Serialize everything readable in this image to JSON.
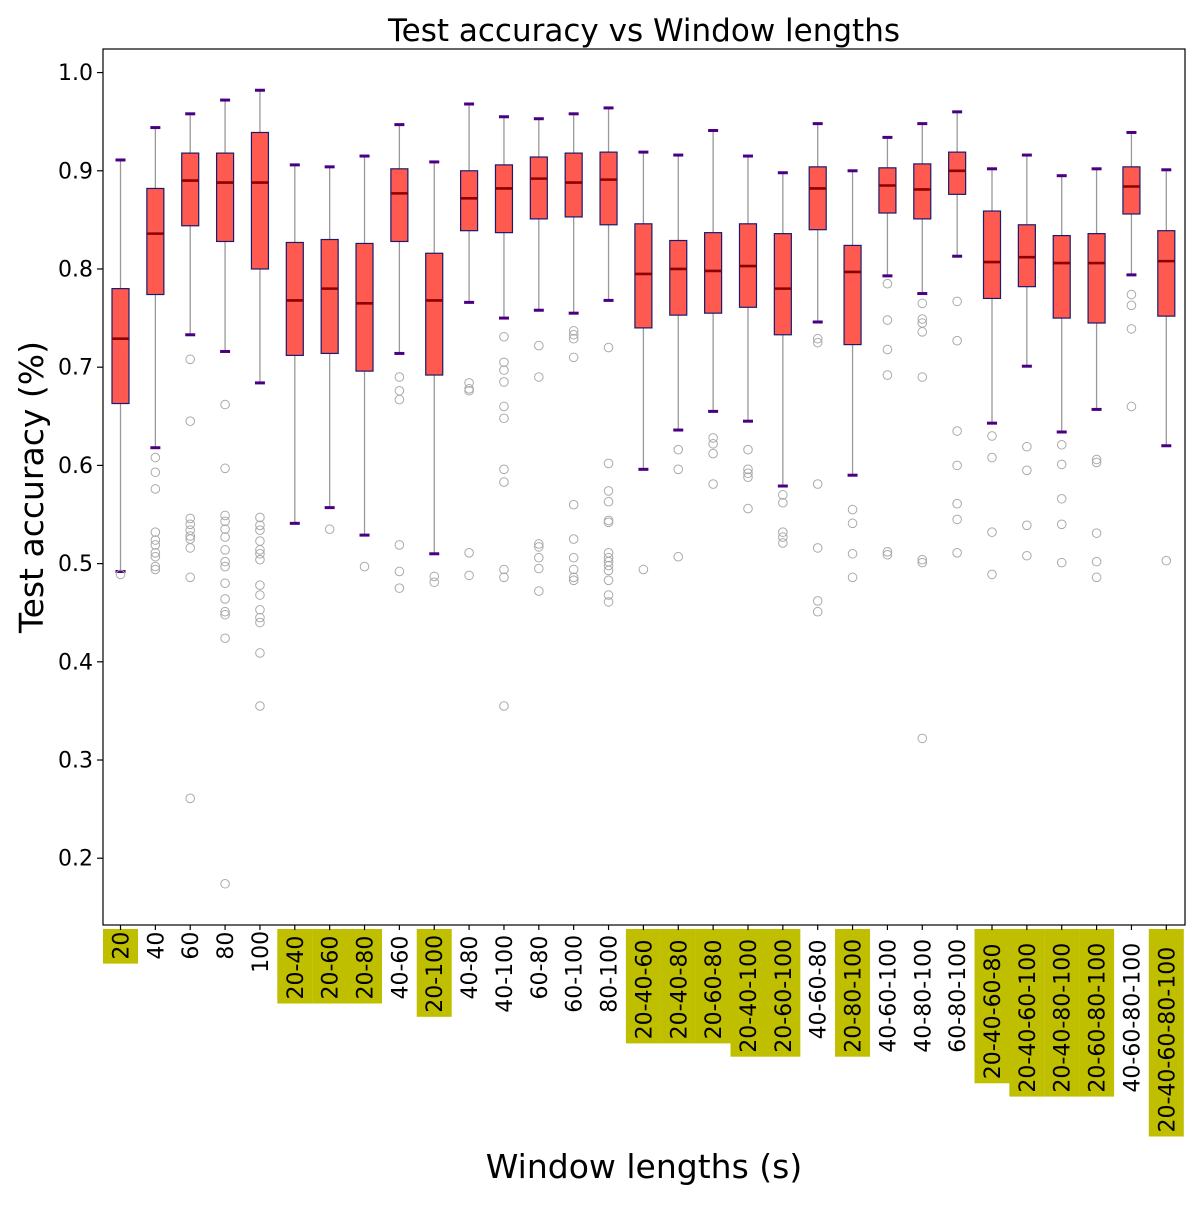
{
  "chart_data": {
    "type": "box",
    "title": "Test accuracy vs Window lengths",
    "xlabel": "Window lengths (s)",
    "ylabel": "Test accuracy (%)",
    "ylim": [
      0.132,
      1.024
    ],
    "yticks": [
      "0.2",
      "0.3",
      "0.4",
      "0.5",
      "0.6",
      "0.7",
      "0.8",
      "0.9",
      "1.0"
    ],
    "grid": false,
    "colors": {
      "box_fill": "#ff5a50",
      "box_edge": "#1a1a6e",
      "median": "#8b0000",
      "whisker": "#999999",
      "cap": "#4b0082",
      "flier": "#aaaaaa",
      "highlight": "#bfbf00"
    },
    "categories": [
      {
        "label": "20",
        "highlight": true,
        "q1": 0.663,
        "median": 0.729,
        "q3": 0.78,
        "whislo": 0.492,
        "whishi": 0.911,
        "fliers": [
          0.489
        ]
      },
      {
        "label": "40",
        "highlight": false,
        "q1": 0.774,
        "median": 0.836,
        "q3": 0.882,
        "whislo": 0.618,
        "whishi": 0.944,
        "fliers": [
          0.608,
          0.593,
          0.576,
          0.532,
          0.524,
          0.519,
          0.511,
          0.507,
          0.497,
          0.494
        ]
      },
      {
        "label": "60",
        "highlight": false,
        "q1": 0.844,
        "median": 0.89,
        "q3": 0.918,
        "whislo": 0.733,
        "whishi": 0.958,
        "fliers": [
          0.708,
          0.645,
          0.546,
          0.54,
          0.534,
          0.528,
          0.525,
          0.516,
          0.486,
          0.261
        ]
      },
      {
        "label": "80",
        "highlight": false,
        "q1": 0.828,
        "median": 0.888,
        "q3": 0.918,
        "whislo": 0.716,
        "whishi": 0.972,
        "fliers": [
          0.662,
          0.597,
          0.549,
          0.543,
          0.535,
          0.527,
          0.514,
          0.502,
          0.497,
          0.48,
          0.464,
          0.451,
          0.448,
          0.424,
          0.174
        ]
      },
      {
        "label": "100",
        "highlight": false,
        "q1": 0.8,
        "median": 0.888,
        "q3": 0.939,
        "whislo": 0.684,
        "whishi": 0.982,
        "fliers": [
          0.547,
          0.539,
          0.534,
          0.523,
          0.514,
          0.51,
          0.504,
          0.478,
          0.468,
          0.453,
          0.445,
          0.44,
          0.409,
          0.355
        ]
      },
      {
        "label": "20-40",
        "highlight": true,
        "q1": 0.712,
        "median": 0.768,
        "q3": 0.827,
        "whislo": 0.541,
        "whishi": 0.906,
        "fliers": []
      },
      {
        "label": "20-60",
        "highlight": true,
        "q1": 0.714,
        "median": 0.78,
        "q3": 0.83,
        "whislo": 0.557,
        "whishi": 0.904,
        "fliers": [
          0.535
        ]
      },
      {
        "label": "20-80",
        "highlight": true,
        "q1": 0.696,
        "median": 0.765,
        "q3": 0.826,
        "whislo": 0.529,
        "whishi": 0.915,
        "fliers": [
          0.497
        ]
      },
      {
        "label": "40-60",
        "highlight": false,
        "q1": 0.828,
        "median": 0.877,
        "q3": 0.902,
        "whislo": 0.714,
        "whishi": 0.947,
        "fliers": [
          0.69,
          0.676,
          0.667,
          0.519,
          0.492,
          0.475
        ]
      },
      {
        "label": "20-100",
        "highlight": true,
        "q1": 0.692,
        "median": 0.768,
        "q3": 0.816,
        "whislo": 0.51,
        "whishi": 0.909,
        "fliers": [
          0.487,
          0.481
        ]
      },
      {
        "label": "40-80",
        "highlight": false,
        "q1": 0.839,
        "median": 0.872,
        "q3": 0.9,
        "whislo": 0.766,
        "whishi": 0.968,
        "fliers": [
          0.684,
          0.678,
          0.676,
          0.511,
          0.488
        ]
      },
      {
        "label": "40-100",
        "highlight": false,
        "q1": 0.837,
        "median": 0.882,
        "q3": 0.906,
        "whislo": 0.75,
        "whishi": 0.955,
        "fliers": [
          0.731,
          0.705,
          0.697,
          0.685,
          0.66,
          0.648,
          0.596,
          0.583,
          0.494,
          0.486,
          0.355
        ]
      },
      {
        "label": "60-80",
        "highlight": false,
        "q1": 0.851,
        "median": 0.892,
        "q3": 0.914,
        "whislo": 0.758,
        "whishi": 0.953,
        "fliers": [
          0.722,
          0.69,
          0.52,
          0.517,
          0.506,
          0.495,
          0.472
        ]
      },
      {
        "label": "60-100",
        "highlight": false,
        "q1": 0.853,
        "median": 0.888,
        "q3": 0.918,
        "whislo": 0.755,
        "whishi": 0.958,
        "fliers": [
          0.737,
          0.733,
          0.729,
          0.71,
          0.56,
          0.525,
          0.506,
          0.494,
          0.486,
          0.483
        ]
      },
      {
        "label": "80-100",
        "highlight": false,
        "q1": 0.845,
        "median": 0.891,
        "q3": 0.919,
        "whislo": 0.768,
        "whishi": 0.964,
        "fliers": [
          0.72,
          0.602,
          0.574,
          0.563,
          0.544,
          0.542,
          0.511,
          0.506,
          0.502,
          0.498,
          0.493,
          0.483,
          0.468,
          0.461
        ]
      },
      {
        "label": "20-40-60",
        "highlight": true,
        "q1": 0.74,
        "median": 0.795,
        "q3": 0.846,
        "whislo": 0.596,
        "whishi": 0.919,
        "fliers": [
          0.494
        ]
      },
      {
        "label": "20-40-80",
        "highlight": true,
        "q1": 0.753,
        "median": 0.8,
        "q3": 0.829,
        "whislo": 0.636,
        "whishi": 0.916,
        "fliers": [
          0.616,
          0.596,
          0.507
        ]
      },
      {
        "label": "20-60-80",
        "highlight": true,
        "q1": 0.755,
        "median": 0.798,
        "q3": 0.837,
        "whislo": 0.655,
        "whishi": 0.941,
        "fliers": [
          0.628,
          0.622,
          0.612,
          0.581
        ]
      },
      {
        "label": "20-40-100",
        "highlight": true,
        "q1": 0.761,
        "median": 0.803,
        "q3": 0.846,
        "whislo": 0.645,
        "whishi": 0.915,
        "fliers": [
          0.616,
          0.596,
          0.592,
          0.588,
          0.556
        ]
      },
      {
        "label": "20-60-100",
        "highlight": true,
        "q1": 0.733,
        "median": 0.78,
        "q3": 0.836,
        "whislo": 0.579,
        "whishi": 0.898,
        "fliers": [
          0.57,
          0.562,
          0.532,
          0.527,
          0.521
        ]
      },
      {
        "label": "40-60-80",
        "highlight": false,
        "q1": 0.84,
        "median": 0.882,
        "q3": 0.904,
        "whislo": 0.746,
        "whishi": 0.948,
        "fliers": [
          0.729,
          0.725,
          0.581,
          0.516,
          0.462,
          0.451
        ]
      },
      {
        "label": "20-80-100",
        "highlight": true,
        "q1": 0.723,
        "median": 0.797,
        "q3": 0.824,
        "whislo": 0.59,
        "whishi": 0.9,
        "fliers": [
          0.555,
          0.541,
          0.51,
          0.486
        ]
      },
      {
        "label": "40-60-100",
        "highlight": false,
        "q1": 0.857,
        "median": 0.885,
        "q3": 0.903,
        "whislo": 0.793,
        "whishi": 0.934,
        "fliers": [
          0.785,
          0.748,
          0.718,
          0.692,
          0.512,
          0.509
        ]
      },
      {
        "label": "40-80-100",
        "highlight": false,
        "q1": 0.851,
        "median": 0.881,
        "q3": 0.907,
        "whislo": 0.775,
        "whishi": 0.948,
        "fliers": [
          0.765,
          0.749,
          0.745,
          0.736,
          0.69,
          0.504,
          0.501,
          0.322
        ]
      },
      {
        "label": "60-80-100",
        "highlight": false,
        "q1": 0.876,
        "median": 0.9,
        "q3": 0.919,
        "whislo": 0.813,
        "whishi": 0.96,
        "fliers": [
          0.767,
          0.727,
          0.635,
          0.6,
          0.561,
          0.545,
          0.511
        ]
      },
      {
        "label": "20-40-60-80",
        "highlight": true,
        "q1": 0.77,
        "median": 0.807,
        "q3": 0.859,
        "whislo": 0.643,
        "whishi": 0.902,
        "fliers": [
          0.63,
          0.608,
          0.532,
          0.489
        ]
      },
      {
        "label": "20-40-60-100",
        "highlight": true,
        "q1": 0.782,
        "median": 0.812,
        "q3": 0.845,
        "whislo": 0.701,
        "whishi": 0.916,
        "fliers": [
          0.619,
          0.595,
          0.539,
          0.508
        ]
      },
      {
        "label": "20-40-80-100",
        "highlight": true,
        "q1": 0.75,
        "median": 0.806,
        "q3": 0.834,
        "whislo": 0.634,
        "whishi": 0.895,
        "fliers": [
          0.621,
          0.601,
          0.566,
          0.54,
          0.501
        ]
      },
      {
        "label": "20-60-80-100",
        "highlight": true,
        "q1": 0.745,
        "median": 0.806,
        "q3": 0.836,
        "whislo": 0.657,
        "whishi": 0.902,
        "fliers": [
          0.606,
          0.603,
          0.531,
          0.502,
          0.486
        ]
      },
      {
        "label": "40-60-80-100",
        "highlight": false,
        "q1": 0.856,
        "median": 0.884,
        "q3": 0.904,
        "whislo": 0.794,
        "whishi": 0.939,
        "fliers": [
          0.774,
          0.763,
          0.739,
          0.66
        ]
      },
      {
        "label": "20-40-60-80-100",
        "highlight": true,
        "q1": 0.752,
        "median": 0.808,
        "q3": 0.839,
        "whislo": 0.62,
        "whishi": 0.901,
        "fliers": [
          0.503
        ]
      }
    ]
  }
}
